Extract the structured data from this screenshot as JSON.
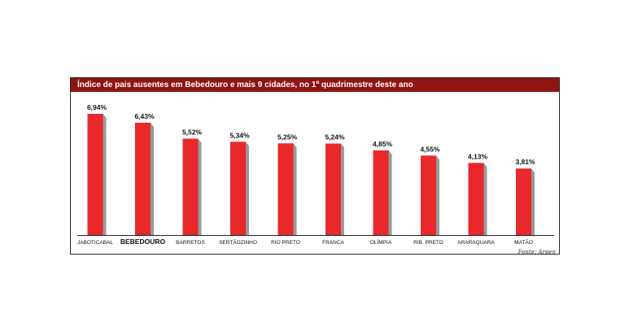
{
  "chart_data": {
    "type": "bar",
    "title": "Índice de pais ausentes em Bebedouro e mais 9 cidades, no 1º quadrimestre deste ano",
    "categories": [
      "JABOTICABAL",
      "BEBEDOURO",
      "BARRETOS",
      "SERTÃOZINHO",
      "RIO PRETO",
      "FRANCA",
      "OLÍMPIA",
      "RIB. PRETO",
      "ARARAQUARA",
      "MATÃO"
    ],
    "values": [
      6.94,
      6.43,
      5.52,
      5.34,
      5.25,
      5.24,
      4.85,
      4.55,
      4.13,
      3.81
    ],
    "value_labels": [
      "6,94%",
      "6,43%",
      "5,52%",
      "5,34%",
      "5,25%",
      "5,24%",
      "4,85%",
      "4,55%",
      "4,13%",
      "3,81%"
    ],
    "highlight_category": "BEBEDOURO",
    "ylim": [
      0,
      6.94
    ],
    "grid": false,
    "legend": "none",
    "colors": {
      "bar": "#e8282b",
      "bar_shadow": "#9a9a9a",
      "title_bg": "#8f1412",
      "title_text": "#ffffff"
    }
  },
  "source": "Fonte: Arpen"
}
